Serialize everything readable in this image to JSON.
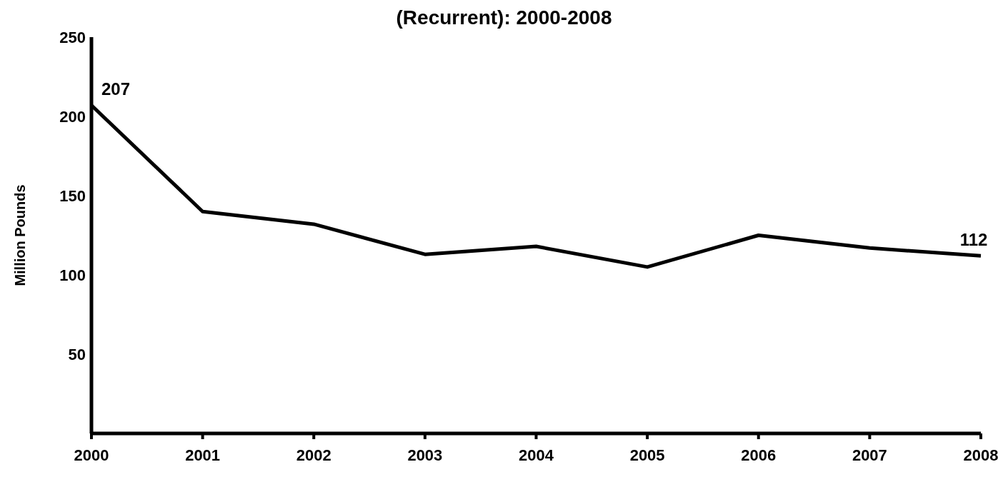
{
  "chart_data": {
    "type": "line",
    "title": "(Recurrent): 2000-2008",
    "ylabel": "Million Pounds",
    "categories": [
      "2000",
      "2001",
      "2002",
      "2003",
      "2004",
      "2005",
      "2006",
      "2007",
      "2008"
    ],
    "series": [
      {
        "color": "#000000",
        "values": [
          207,
          140,
          132,
          113,
          118,
          105,
          125,
          117,
          112
        ],
        "value_labels": [
          "207",
          null,
          null,
          null,
          null,
          null,
          null,
          null,
          "112"
        ]
      }
    ],
    "ylim": [
      0,
      250
    ],
    "yticks": [
      50,
      100,
      150,
      200,
      250
    ],
    "grid": false,
    "legend": false,
    "marker": "none",
    "line_style": "solid"
  }
}
